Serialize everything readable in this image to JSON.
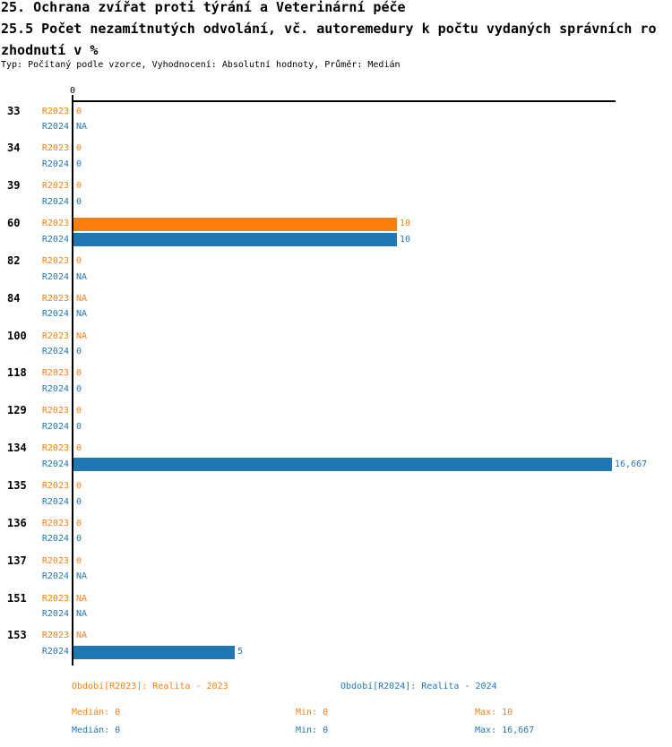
{
  "header": {
    "title": "25. Ochrana zvířat proti týrání a Veterinární péče",
    "subtitle_lines": [
      "25.5 Počet nezamítnutých odvolání, vč. autoremedury k počtu vydaných správních ro",
      "zhodnutí v %"
    ],
    "meta": "Typ: Počítaný podle vzorce, Vyhodnocení: Absolutní hodnoty, Průměr: Medián"
  },
  "chart_data": {
    "type": "bar",
    "orientation": "horizontal",
    "x_axis": {
      "tick_labels": [
        "0"
      ],
      "xlim": [
        0,
        16.667
      ],
      "grid": false
    },
    "series": [
      "R2023",
      "R2024"
    ],
    "series_colors": {
      "R2023": "#ff7f0e",
      "R2024": "#1f77b4"
    },
    "na_text": "NA",
    "groups": [
      {
        "category": "33",
        "rows": [
          {
            "series": "R2023",
            "value": 0,
            "label": "0"
          },
          {
            "series": "R2024",
            "value": null,
            "label": "NA"
          }
        ]
      },
      {
        "category": "34",
        "rows": [
          {
            "series": "R2023",
            "value": 0,
            "label": "0"
          },
          {
            "series": "R2024",
            "value": 0,
            "label": "0"
          }
        ]
      },
      {
        "category": "39",
        "rows": [
          {
            "series": "R2023",
            "value": 0,
            "label": "0"
          },
          {
            "series": "R2024",
            "value": 0,
            "label": "0"
          }
        ]
      },
      {
        "category": "60",
        "rows": [
          {
            "series": "R2023",
            "value": 10,
            "label": "10"
          },
          {
            "series": "R2024",
            "value": 10,
            "label": "10"
          }
        ]
      },
      {
        "category": "82",
        "rows": [
          {
            "series": "R2023",
            "value": 0,
            "label": "0"
          },
          {
            "series": "R2024",
            "value": null,
            "label": "NA"
          }
        ]
      },
      {
        "category": "84",
        "rows": [
          {
            "series": "R2023",
            "value": null,
            "label": "NA"
          },
          {
            "series": "R2024",
            "value": null,
            "label": "NA"
          }
        ]
      },
      {
        "category": "100",
        "rows": [
          {
            "series": "R2023",
            "value": null,
            "label": "NA"
          },
          {
            "series": "R2024",
            "value": 0,
            "label": "0"
          }
        ]
      },
      {
        "category": "118",
        "rows": [
          {
            "series": "R2023",
            "value": 0,
            "label": "0"
          },
          {
            "series": "R2024",
            "value": 0,
            "label": "0"
          }
        ]
      },
      {
        "category": "129",
        "rows": [
          {
            "series": "R2023",
            "value": 0,
            "label": "0"
          },
          {
            "series": "R2024",
            "value": 0,
            "label": "0"
          }
        ]
      },
      {
        "category": "134",
        "rows": [
          {
            "series": "R2023",
            "value": 0,
            "label": "0"
          },
          {
            "series": "R2024",
            "value": 16.667,
            "label": "16,667"
          }
        ]
      },
      {
        "category": "135",
        "rows": [
          {
            "series": "R2023",
            "value": 0,
            "label": "0"
          },
          {
            "series": "R2024",
            "value": 0,
            "label": "0"
          }
        ]
      },
      {
        "category": "136",
        "rows": [
          {
            "series": "R2023",
            "value": 0,
            "label": "0"
          },
          {
            "series": "R2024",
            "value": 0,
            "label": "0"
          }
        ]
      },
      {
        "category": "137",
        "rows": [
          {
            "series": "R2023",
            "value": 0,
            "label": "0"
          },
          {
            "series": "R2024",
            "value": null,
            "label": "NA"
          }
        ]
      },
      {
        "category": "151",
        "rows": [
          {
            "series": "R2023",
            "value": null,
            "label": "NA"
          },
          {
            "series": "R2024",
            "value": null,
            "label": "NA"
          }
        ]
      },
      {
        "category": "153",
        "rows": [
          {
            "series": "R2023",
            "value": null,
            "label": "NA"
          },
          {
            "series": "R2024",
            "value": 5,
            "label": "5"
          }
        ]
      }
    ],
    "legend": [
      {
        "series": "R2023",
        "label": "Období[R2023]: Realita - 2023"
      },
      {
        "series": "R2024",
        "label": "Období[R2024]: Realita - 2024"
      }
    ],
    "stats": [
      {
        "series": "R2023",
        "median": "Medián: 0",
        "min": "Min: 0",
        "max": "Max: 10"
      },
      {
        "series": "R2024",
        "median": "Medián: 0",
        "min": "Min: 0",
        "max": "Max: 16,667"
      }
    ]
  }
}
